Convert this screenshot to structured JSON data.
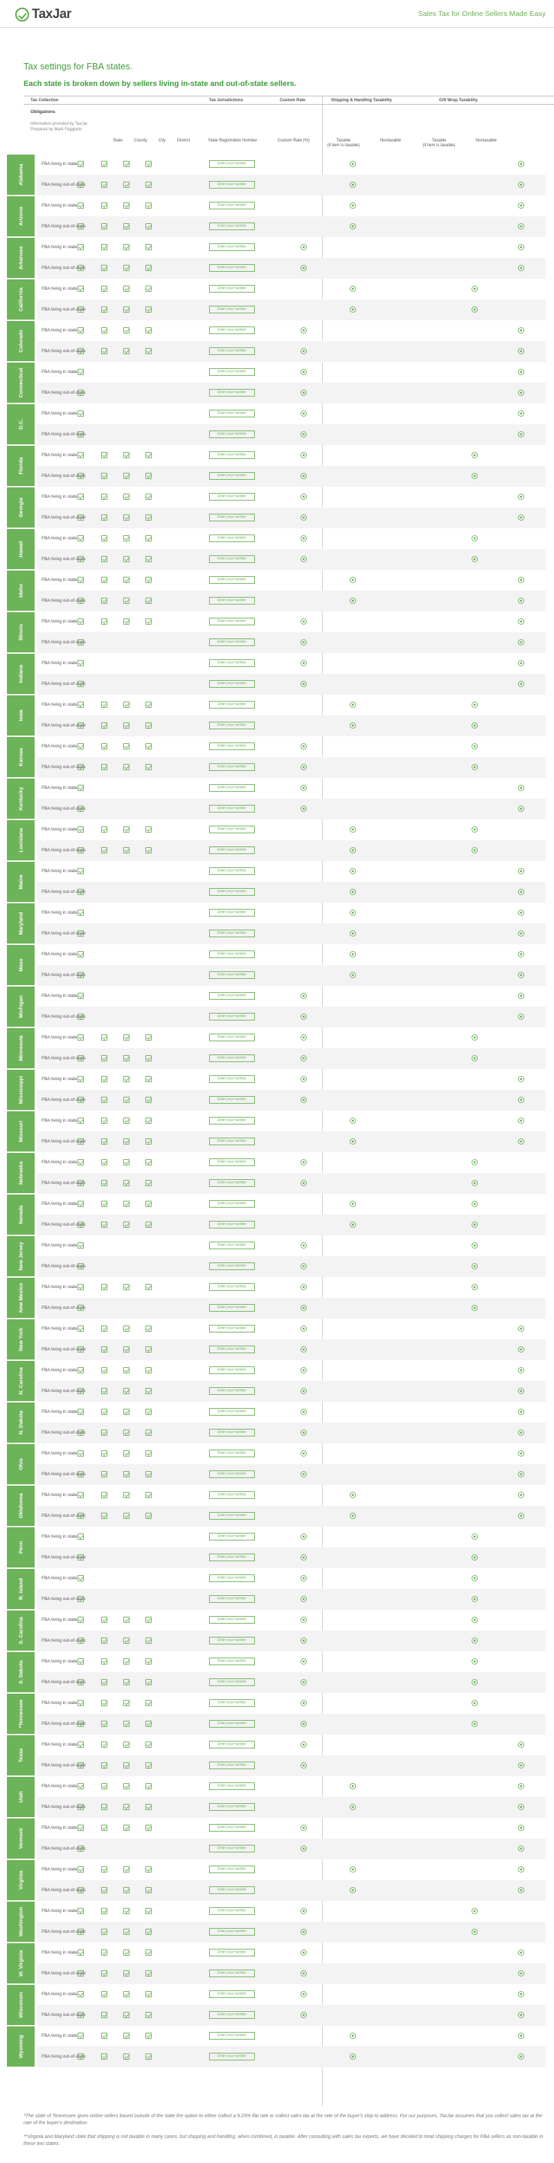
{
  "brand": {
    "logo_text": "TaxJar",
    "tagline": "Sales Tax for Online Sellers Made Easy"
  },
  "title": "Tax settings for FBA states.",
  "subtitle": "Each state is broken down by sellers living in-state and out-of-state sellers.",
  "columns": {
    "tax_collection": "Tax Collection",
    "obligations": "Obligations",
    "tax_jurisdictions": "Tax Jurisdictions",
    "custom_rate": "Custom Rate",
    "shipping": "Shipping & Handling Taxability",
    "gift_wrap": "Gift Wrap Taxability"
  },
  "info_lines": [
    "Information provided by TaxJar.",
    "Prepared by Mark Faggiano"
  ],
  "subheaders": {
    "state": "State",
    "county": "County",
    "city": "City",
    "district": "District",
    "reg": "State Registration Number",
    "rate": "Custom Rate (%)",
    "taxable": "Taxable",
    "taxable_note": "(if item is taxable)",
    "nontaxable": "Nontaxable"
  },
  "row_in": "FBA living in state",
  "row_out": "FBA living out-of-state",
  "reg_placeholder": "Enter your number",
  "states": [
    {
      "name": "Alabama",
      "in": [
        1,
        1,
        1,
        1
      ],
      "out": [
        1,
        1,
        1,
        1
      ],
      "ship": [
        "n",
        "n"
      ],
      "gift": [
        "n",
        "n"
      ]
    },
    {
      "name": "Arizona",
      "in": [
        1,
        1,
        1,
        1
      ],
      "out": [
        1,
        1,
        1,
        1
      ],
      "ship": [
        "n",
        "n"
      ],
      "gift": [
        "n",
        "n"
      ]
    },
    {
      "name": "Arkansas",
      "in": [
        1,
        1,
        1,
        1
      ],
      "out": [
        1,
        1,
        1,
        1
      ],
      "ship": [
        "t",
        "t"
      ],
      "gift": [
        "n",
        "n"
      ]
    },
    {
      "name": "California",
      "in": [
        1,
        1,
        1,
        1
      ],
      "out": [
        1,
        1,
        1,
        1
      ],
      "ship": [
        "n",
        "n"
      ],
      "gift": [
        "t",
        "t"
      ]
    },
    {
      "name": "Colorado",
      "in": [
        1,
        1,
        1,
        1
      ],
      "out": [
        1,
        1,
        1,
        1
      ],
      "ship": [
        "t",
        "t"
      ],
      "gift": [
        "n",
        "n"
      ]
    },
    {
      "name": "Connecticut",
      "in": [
        1,
        0,
        0,
        0
      ],
      "out": [
        1,
        0,
        0,
        0
      ],
      "ship": [
        "t",
        "t"
      ],
      "gift": [
        "n",
        "n"
      ]
    },
    {
      "name": "D.C.",
      "in": [
        1,
        0,
        0,
        0
      ],
      "out": [
        1,
        0,
        0,
        0
      ],
      "ship": [
        "t",
        "t"
      ],
      "gift": [
        "n",
        "n"
      ]
    },
    {
      "name": "Florida",
      "in": [
        1,
        1,
        1,
        1
      ],
      "out": [
        1,
        1,
        1,
        1
      ],
      "ship": [
        "t",
        "t"
      ],
      "gift": [
        "t",
        "t"
      ]
    },
    {
      "name": "Georgia",
      "in": [
        1,
        1,
        1,
        1
      ],
      "out": [
        1,
        1,
        1,
        1
      ],
      "ship": [
        "t",
        "t"
      ],
      "gift": [
        "n",
        "n"
      ]
    },
    {
      "name": "Hawaii",
      "in": [
        1,
        1,
        1,
        1
      ],
      "out": [
        1,
        1,
        1,
        1
      ],
      "ship": [
        "t",
        "t"
      ],
      "gift": [
        "t",
        "t"
      ]
    },
    {
      "name": "Idaho",
      "in": [
        1,
        1,
        1,
        1
      ],
      "out": [
        1,
        1,
        1,
        1
      ],
      "ship": [
        "n",
        "n"
      ],
      "gift": [
        "n",
        "n"
      ]
    },
    {
      "name": "Illinois",
      "in": [
        1,
        1,
        1,
        1
      ],
      "out": [
        1,
        0,
        0,
        0
      ],
      "ship": [
        "t",
        "t"
      ],
      "gift": [
        "n",
        "n"
      ]
    },
    {
      "name": "Indiana",
      "in": [
        1,
        0,
        0,
        0
      ],
      "out": [
        1,
        0,
        0,
        0
      ],
      "ship": [
        "t",
        "t"
      ],
      "gift": [
        "n",
        "n"
      ]
    },
    {
      "name": "Iowa",
      "in": [
        1,
        1,
        1,
        1
      ],
      "out": [
        1,
        1,
        1,
        1
      ],
      "ship": [
        "n",
        "n"
      ],
      "gift": [
        "t",
        "t"
      ]
    },
    {
      "name": "Kansas",
      "in": [
        1,
        1,
        1,
        1
      ],
      "out": [
        1,
        1,
        1,
        1
      ],
      "ship": [
        "t",
        "t"
      ],
      "gift": [
        "t",
        "t"
      ]
    },
    {
      "name": "Kentucky",
      "in": [
        1,
        0,
        0,
        0
      ],
      "out": [
        1,
        0,
        0,
        0
      ],
      "ship": [
        "t",
        "t"
      ],
      "gift": [
        "n",
        "n"
      ]
    },
    {
      "name": "Louisiana",
      "in": [
        1,
        1,
        1,
        1
      ],
      "out": [
        1,
        1,
        1,
        1
      ],
      "ship": [
        "n",
        "n"
      ],
      "gift": [
        "t",
        "t"
      ]
    },
    {
      "name": "Maine",
      "in": [
        1,
        0,
        0,
        0
      ],
      "out": [
        1,
        0,
        0,
        0
      ],
      "ship": [
        "n",
        "n"
      ],
      "gift": [
        "n",
        "n"
      ]
    },
    {
      "name": "Maryland",
      "in": [
        1,
        0,
        0,
        0
      ],
      "out": [
        1,
        0,
        0,
        0
      ],
      "ship": [
        "n",
        "n"
      ],
      "gift": [
        "n",
        "n"
      ]
    },
    {
      "name": "Mass",
      "in": [
        1,
        0,
        0,
        0
      ],
      "out": [
        1,
        0,
        0,
        0
      ],
      "ship": [
        "n",
        "n"
      ],
      "gift": [
        "n",
        "n"
      ]
    },
    {
      "name": "Michigan",
      "in": [
        1,
        0,
        0,
        0
      ],
      "out": [
        1,
        0,
        0,
        0
      ],
      "ship": [
        "t",
        "t"
      ],
      "gift": [
        "n",
        "n"
      ]
    },
    {
      "name": "Minnesota",
      "in": [
        1,
        1,
        1,
        1
      ],
      "out": [
        1,
        1,
        1,
        1
      ],
      "ship": [
        "t",
        "t"
      ],
      "gift": [
        "t",
        "t"
      ]
    },
    {
      "name": "Mississippi",
      "in": [
        1,
        1,
        1,
        1
      ],
      "out": [
        1,
        1,
        1,
        1
      ],
      "ship": [
        "t",
        "t"
      ],
      "gift": [
        "n",
        "n"
      ]
    },
    {
      "name": "Missouri",
      "in": [
        1,
        1,
        1,
        1
      ],
      "out": [
        1,
        1,
        1,
        1
      ],
      "ship": [
        "n",
        "n"
      ],
      "gift": [
        "n",
        "n"
      ]
    },
    {
      "name": "Nebraska",
      "in": [
        1,
        1,
        1,
        1
      ],
      "out": [
        1,
        1,
        1,
        1
      ],
      "ship": [
        "t",
        "t"
      ],
      "gift": [
        "t",
        "t"
      ]
    },
    {
      "name": "Nevada",
      "in": [
        1,
        1,
        1,
        1
      ],
      "out": [
        1,
        1,
        1,
        1
      ],
      "ship": [
        "n",
        "n"
      ],
      "gift": [
        "t",
        "t"
      ]
    },
    {
      "name": "New Jersey",
      "in": [
        1,
        0,
        0,
        0
      ],
      "out": [
        1,
        0,
        0,
        0
      ],
      "ship": [
        "t",
        "t"
      ],
      "gift": [
        "t",
        "t"
      ]
    },
    {
      "name": "New Mexico",
      "in": [
        1,
        1,
        1,
        1
      ],
      "out": [
        1,
        0,
        0,
        0
      ],
      "ship": [
        "t",
        "t"
      ],
      "gift": [
        "t",
        "t"
      ]
    },
    {
      "name": "New York",
      "in": [
        1,
        1,
        1,
        1
      ],
      "out": [
        1,
        1,
        1,
        1
      ],
      "ship": [
        "t",
        "t"
      ],
      "gift": [
        "n",
        "n"
      ]
    },
    {
      "name": "N. Carolina",
      "in": [
        1,
        1,
        1,
        1
      ],
      "out": [
        1,
        1,
        1,
        1
      ],
      "ship": [
        "t",
        "t"
      ],
      "gift": [
        "n",
        "n"
      ]
    },
    {
      "name": "N. Dakota",
      "in": [
        1,
        1,
        1,
        1
      ],
      "out": [
        1,
        1,
        1,
        1
      ],
      "ship": [
        "t",
        "t"
      ],
      "gift": [
        "n",
        "n"
      ]
    },
    {
      "name": "Ohio",
      "in": [
        1,
        1,
        1,
        1
      ],
      "out": [
        1,
        1,
        1,
        1
      ],
      "ship": [
        "t",
        "t"
      ],
      "gift": [
        "n",
        "n"
      ]
    },
    {
      "name": "Oklahoma",
      "in": [
        1,
        1,
        1,
        1
      ],
      "out": [
        1,
        1,
        1,
        1
      ],
      "ship": [
        "n",
        "n"
      ],
      "gift": [
        "n",
        "n"
      ]
    },
    {
      "name": "Penn",
      "in": [
        1,
        0,
        0,
        0
      ],
      "out": [
        1,
        0,
        0,
        0
      ],
      "ship": [
        "t",
        "t"
      ],
      "gift": [
        "t",
        "t"
      ]
    },
    {
      "name": "R. Island",
      "in": [
        1,
        0,
        0,
        0
      ],
      "out": [
        1,
        0,
        0,
        0
      ],
      "ship": [
        "t",
        "t"
      ],
      "gift": [
        "t",
        "t"
      ]
    },
    {
      "name": "S. Carolina",
      "in": [
        1,
        1,
        1,
        1
      ],
      "out": [
        1,
        1,
        1,
        1
      ],
      "ship": [
        "t",
        "t"
      ],
      "gift": [
        "t",
        "t"
      ]
    },
    {
      "name": "S. Dakota",
      "in": [
        1,
        1,
        1,
        1
      ],
      "out": [
        1,
        1,
        1,
        1
      ],
      "ship": [
        "t",
        "t"
      ],
      "gift": [
        "t",
        "t"
      ]
    },
    {
      "name": "*Tennessee",
      "in": [
        1,
        1,
        1,
        1
      ],
      "out": [
        1,
        1,
        1,
        1
      ],
      "ship": [
        "t",
        "t"
      ],
      "gift": [
        "t",
        "t"
      ]
    },
    {
      "name": "Texas",
      "in": [
        1,
        1,
        1,
        1
      ],
      "out": [
        1,
        1,
        1,
        1
      ],
      "ship": [
        "t",
        "t"
      ],
      "gift": [
        "n",
        "n"
      ]
    },
    {
      "name": "Utah",
      "in": [
        1,
        1,
        1,
        1
      ],
      "out": [
        1,
        1,
        1,
        1
      ],
      "ship": [
        "n",
        "n"
      ],
      "gift": [
        "n",
        "n"
      ]
    },
    {
      "name": "Vermont",
      "in": [
        1,
        1,
        1,
        1
      ],
      "out": [
        1,
        0,
        0,
        0
      ],
      "ship": [
        "t",
        "t"
      ],
      "gift": [
        "n",
        "n"
      ]
    },
    {
      "name": "Virginia",
      "in": [
        1,
        1,
        1,
        1
      ],
      "out": [
        1,
        1,
        1,
        1
      ],
      "ship": [
        "n",
        "n"
      ],
      "gift": [
        "n",
        "n"
      ]
    },
    {
      "name": "Washington",
      "in": [
        1,
        1,
        1,
        1
      ],
      "out": [
        1,
        1,
        1,
        1
      ],
      "ship": [
        "t",
        "t"
      ],
      "gift": [
        "t",
        "t"
      ]
    },
    {
      "name": "W. Virginia",
      "in": [
        1,
        1,
        1,
        1
      ],
      "out": [
        1,
        1,
        1,
        1
      ],
      "ship": [
        "t",
        "t"
      ],
      "gift": [
        "n",
        "n"
      ]
    },
    {
      "name": "Wisconsin",
      "in": [
        1,
        1,
        1,
        1
      ],
      "out": [
        1,
        1,
        1,
        1
      ],
      "ship": [
        "t",
        "t"
      ],
      "gift": [
        "n",
        "n"
      ]
    },
    {
      "name": "Wyoming",
      "in": [
        1,
        1,
        1,
        1
      ],
      "out": [
        1,
        1,
        1,
        1
      ],
      "ship": [
        "n",
        "n"
      ],
      "gift": [
        "n",
        "n"
      ]
    }
  ],
  "footnotes": [
    "*The state of Tennessee gives online sellers based outside of the state the option to either collect a 9.25% flat rate or collect sales tax at the rate of the buyer's ship to address. For our purposes, TaxJar assumes that you collect sales tax at the rate of the buyer's destination.",
    "**Virginia and Maryland state that shipping is not taxable in many cases, but shipping and handling, when combined, is taxable. After consulting with sales tax experts, we have decided to treat shipping charges for FBA sellers as non-taxable in these two states."
  ]
}
